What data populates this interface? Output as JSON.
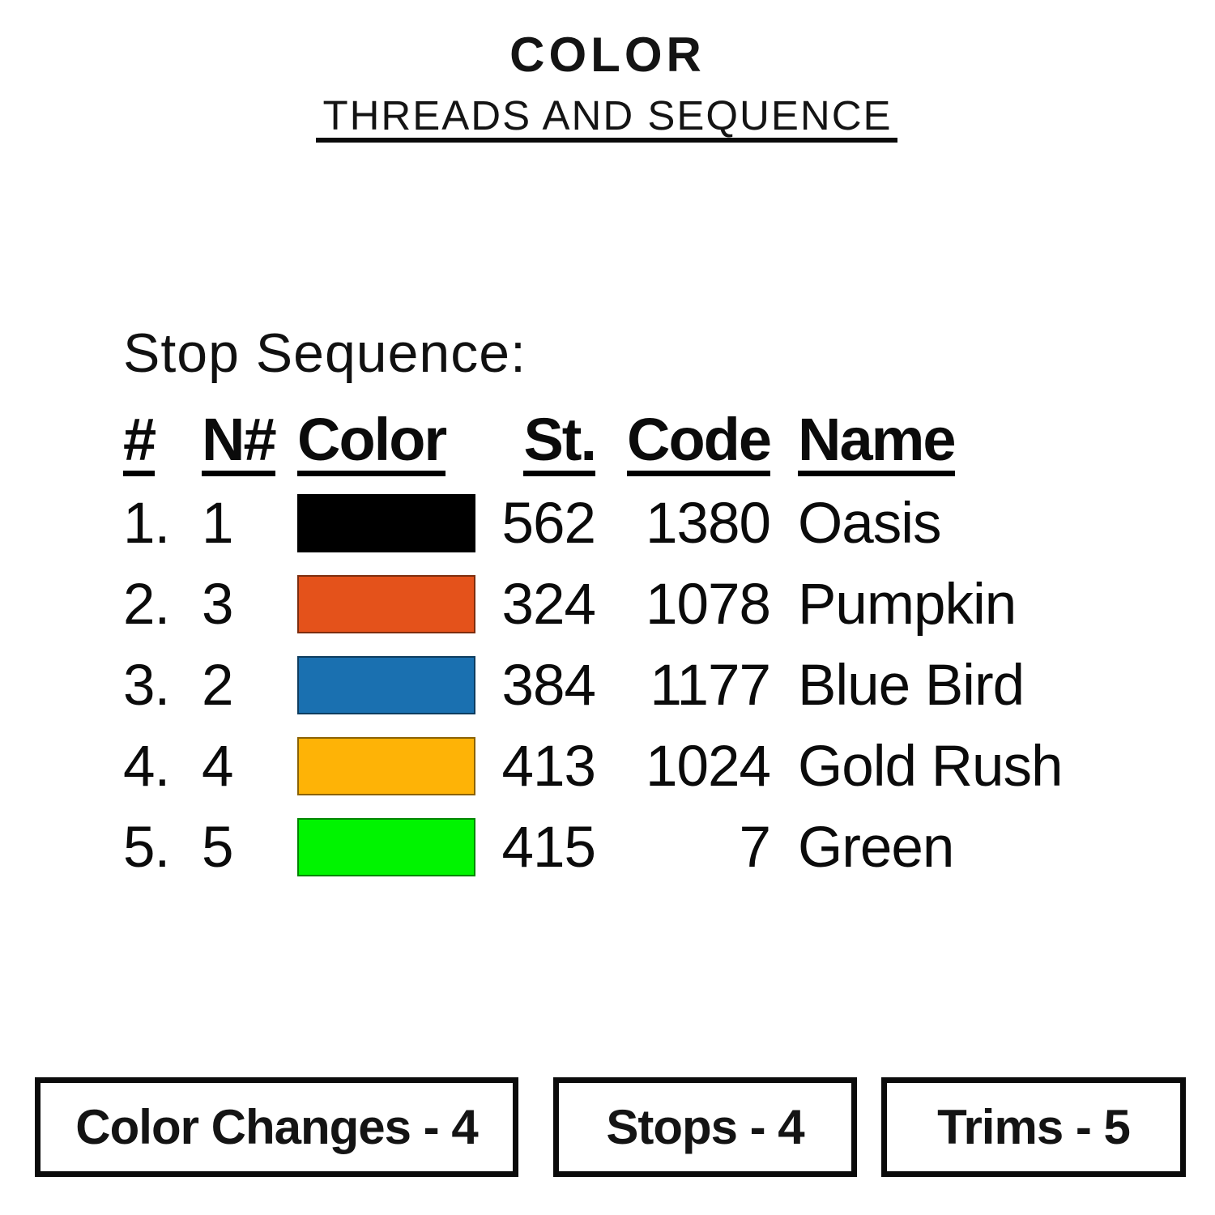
{
  "header": {
    "title": "COLOR",
    "subtitle": "THREADS AND SEQUENCE"
  },
  "stop_sequence": {
    "heading": "Stop Sequence:",
    "columns": [
      "#",
      "N#",
      "Color",
      "St.",
      "Code",
      "Name"
    ],
    "rows": [
      {
        "number": "1.",
        "needle": "1",
        "swatch_hex": "#000000",
        "stitches": "562",
        "code": "1380",
        "name": "Oasis"
      },
      {
        "number": "2.",
        "needle": "3",
        "swatch_hex": "#E4521B",
        "stitches": "324",
        "code": "1078",
        "name": "Pumpkin"
      },
      {
        "number": "3.",
        "needle": "2",
        "swatch_hex": "#1A70B0",
        "stitches": "384",
        "code": "1177",
        "name": "Blue Bird"
      },
      {
        "number": "4.",
        "needle": "4",
        "swatch_hex": "#FEB306",
        "stitches": "413",
        "code": "1024",
        "name": "Gold Rush"
      },
      {
        "number": "5.",
        "needle": "5",
        "swatch_hex": "#00F400",
        "stitches": "415",
        "code": "7",
        "name": "Green"
      }
    ]
  },
  "footer": {
    "boxes": [
      {
        "label": "Color Changes - 4"
      },
      {
        "label": "Stops - 4"
      },
      {
        "label": "Trims - 5"
      }
    ]
  },
  "colors": {
    "background": "#FFFFFF",
    "ink": "#0B0B0B"
  }
}
